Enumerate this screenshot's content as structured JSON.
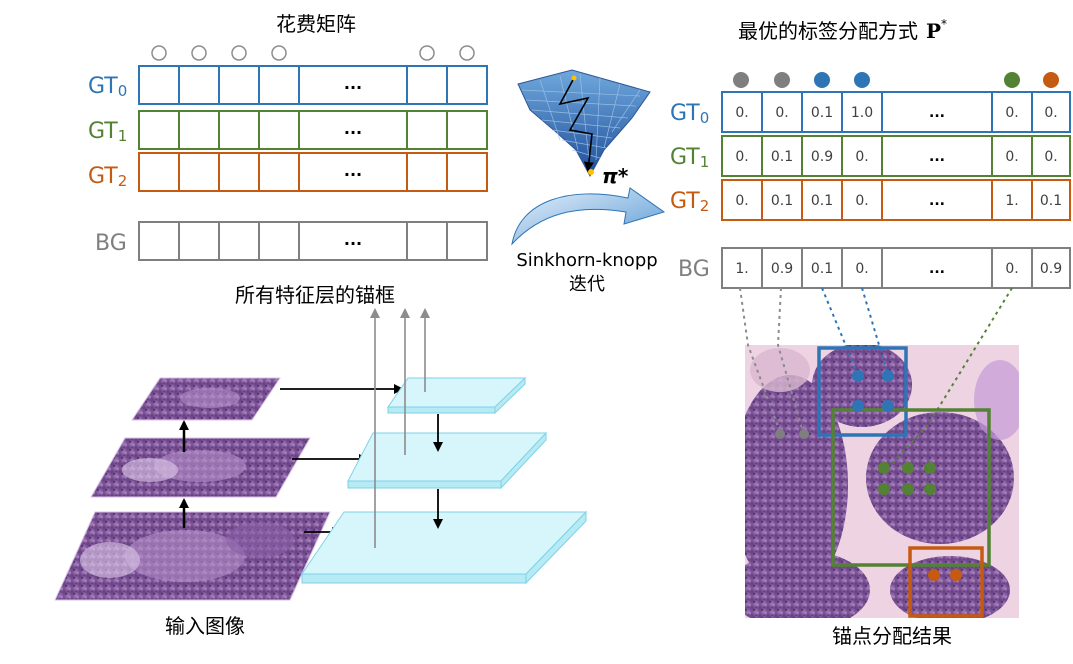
{
  "cost_matrix": {
    "title": "花费矩阵",
    "row_labels": [
      {
        "base": "GT",
        "sub": "0",
        "color": "#2e75b6"
      },
      {
        "base": "GT",
        "sub": "1",
        "color": "#548235"
      },
      {
        "base": "GT",
        "sub": "2",
        "color": "#c55a11"
      }
    ],
    "bg_label": "BG",
    "ellipsis": "..."
  },
  "sinkhorn": {
    "symbol": "π*",
    "label_line1": "Sinkhorn-knopp",
    "label_line2": "迭代"
  },
  "assignment": {
    "title": "最优的标签分配方式",
    "title_symbol": "P",
    "title_sup": "*",
    "ellipsis": "...",
    "rows": [
      {
        "base": "GT",
        "sub": "0",
        "color": "#2e75b6",
        "values": [
          "0.",
          "0.",
          "0.1",
          "1.0",
          "0.",
          "0."
        ]
      },
      {
        "base": "GT",
        "sub": "1",
        "color": "#548235",
        "values": [
          "0.",
          "0.1",
          "0.9",
          "0.",
          "0.",
          "0."
        ]
      },
      {
        "base": "GT",
        "sub": "2",
        "color": "#c55a11",
        "values": [
          "0.",
          "0.1",
          "0.1",
          "0.",
          "1.",
          "0.1"
        ]
      }
    ],
    "bg_row": {
      "label": "BG",
      "color": "#7f7f7f",
      "values": [
        "1.",
        "0.9",
        "0.1",
        "0.",
        "0.",
        "0.9"
      ]
    },
    "anchor_dot_colors": [
      "#7f7f7f",
      "#7f7f7f",
      "#2e75b6",
      "#2e75b6",
      "#548235",
      "#c55a11"
    ]
  },
  "pyramid": {
    "title": "所有特征层的锚框",
    "input_label": "输入图像"
  },
  "result": {
    "label": "锚点分配结果"
  },
  "colors": {
    "gt0": "#2e75b6",
    "gt1": "#548235",
    "gt2": "#c55a11",
    "bg": "#7f7f7f",
    "feature_plane": "#d7f6fb"
  }
}
